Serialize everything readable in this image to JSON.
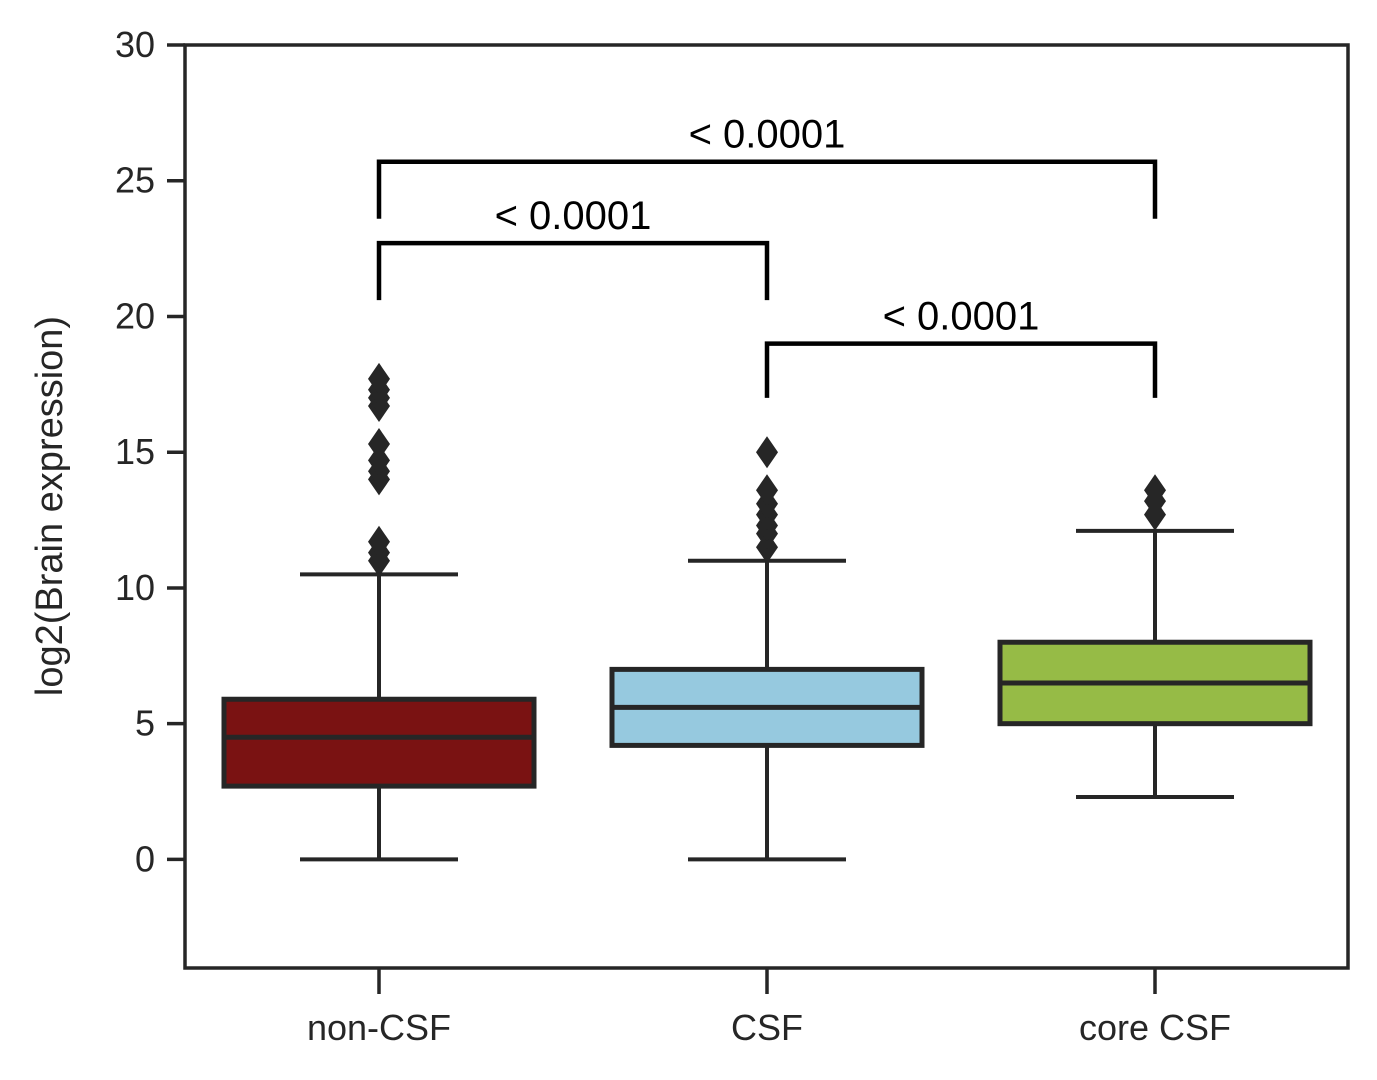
{
  "chart_data": {
    "type": "box",
    "title": "",
    "xlabel": "",
    "ylabel": "log2(Brain expression)",
    "ylim": [
      -4,
      30
    ],
    "yticks": [
      0,
      5,
      10,
      15,
      20,
      25,
      30
    ],
    "grid": false,
    "legend": "none",
    "categories": [
      "non-CSF",
      "CSF",
      "core CSF"
    ],
    "boxes": [
      {
        "category": "non-CSF",
        "color": "#7a1212",
        "whisker_low": 0,
        "q1": 2.7,
        "median": 4.5,
        "q3": 5.9,
        "whisker_high": 10.5,
        "outliers": [
          11.0,
          11.3,
          11.7,
          14.0,
          14.3,
          14.7,
          15.3,
          16.7,
          17.0,
          17.3,
          17.7
        ]
      },
      {
        "category": "CSF",
        "color": "#96c9df",
        "whisker_low": 0,
        "q1": 4.2,
        "median": 5.6,
        "q3": 7.0,
        "whisker_high": 11.0,
        "outliers": [
          11.5,
          12.0,
          12.3,
          12.7,
          13.1,
          13.6,
          15.0
        ]
      },
      {
        "category": "core CSF",
        "color": "#96bb46",
        "whisker_low": 2.3,
        "q1": 5.0,
        "median": 6.5,
        "q3": 8.0,
        "whisker_high": 12.1,
        "outliers": [
          12.7,
          13.2,
          13.6
        ]
      }
    ],
    "annotations": [
      {
        "from": 0,
        "to": 2,
        "y_bottom": 23.6,
        "y_top": 25.7,
        "text": "< 0.0001"
      },
      {
        "from": 0,
        "to": 1,
        "y_bottom": 20.6,
        "y_top": 22.7,
        "text": "< 0.0001"
      },
      {
        "from": 1,
        "to": 2,
        "y_bottom": 17.0,
        "y_top": 19.0,
        "text": "< 0.0001"
      }
    ]
  }
}
